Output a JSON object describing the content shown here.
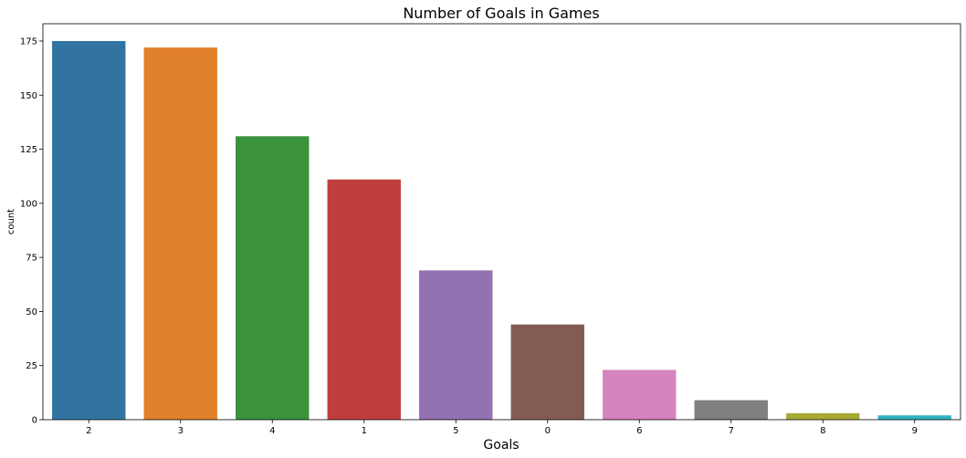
{
  "chart_data": {
    "type": "bar",
    "title": "Number of Goals in Games",
    "xlabel": "Goals",
    "ylabel": "count",
    "categories": [
      "2",
      "3",
      "4",
      "1",
      "5",
      "0",
      "6",
      "7",
      "8",
      "9"
    ],
    "values": [
      175,
      172,
      131,
      111,
      69,
      44,
      23,
      9,
      3,
      2
    ],
    "colors": [
      "#3274a1",
      "#e1812c",
      "#3a923a",
      "#c03d3e",
      "#9372b2",
      "#845b53",
      "#d684bd",
      "#7f7f7f",
      "#a9aa35",
      "#2eb3c2"
    ],
    "ylim": [
      0,
      183
    ],
    "yticks": [
      0,
      25,
      50,
      75,
      100,
      125,
      150,
      175
    ],
    "grid": false,
    "legend": "none"
  }
}
